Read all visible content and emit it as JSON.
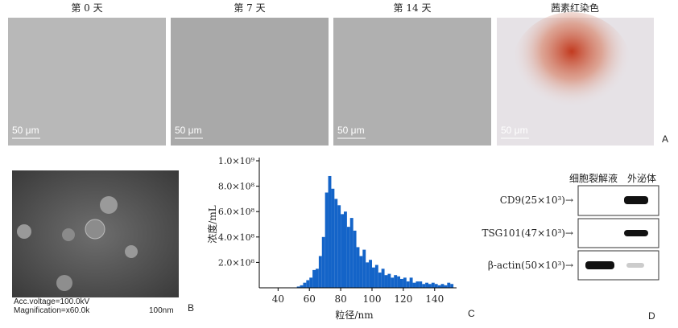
{
  "panel_a": {
    "titles": [
      "第 0 天",
      "第 7 天",
      "第 14 天",
      "茜素红染色"
    ],
    "scale": "50 μm",
    "letter": "A"
  },
  "panel_b": {
    "voltage": "Acc.voltage=100.0kV",
    "magnification": "Magnification=x60.0k",
    "scale": "100nm",
    "letter": "B"
  },
  "chart_data": {
    "type": "histogram",
    "xlabel": "粒径/nm",
    "ylabel": "浓度/mL",
    "color": "#1464c8",
    "bins": [
      52,
      54,
      56,
      58,
      60,
      62,
      64,
      66,
      68,
      70,
      72,
      74,
      76,
      78,
      80,
      82,
      84,
      86,
      88,
      90,
      92,
      94,
      96,
      98,
      100,
      102,
      104,
      106,
      108,
      110,
      112,
      114,
      116,
      118,
      120,
      122,
      124,
      126,
      128,
      130,
      132,
      134,
      136,
      138,
      140,
      142,
      144,
      146,
      148,
      150,
      152
    ],
    "values": [
      10000000.0,
      20000000.0,
      40000000.0,
      60000000.0,
      80000000.0,
      140000000.0,
      150000000.0,
      250000000.0,
      400000000.0,
      750000000.0,
      880000000.0,
      780000000.0,
      700000000.0,
      650000000.0,
      580000000.0,
      600000000.0,
      480000000.0,
      550000000.0,
      450000000.0,
      320000000.0,
      250000000.0,
      300000000.0,
      200000000.0,
      220000000.0,
      160000000.0,
      180000000.0,
      120000000.0,
      150000000.0,
      100000000.0,
      110000000.0,
      80000000.0,
      100000000.0,
      90000000.0,
      70000000.0,
      80000000.0,
      50000000.0,
      80000000.0,
      40000000.0,
      50000000.0,
      50000000.0,
      30000000.0,
      40000000.0,
      30000000.0,
      40000000.0,
      30000000.0,
      20000000.0,
      30000000.0,
      20000000.0,
      40000000.0,
      30000000.0
    ],
    "xlim": [
      28,
      154
    ],
    "ylim": [
      0,
      1000000000
    ],
    "xticks": [
      40,
      60,
      80,
      100,
      120,
      140
    ],
    "yticks": [
      {
        "value": 200000000,
        "label": "2.0×10⁸"
      },
      {
        "value": 400000000,
        "label": "4.0×10⁸"
      },
      {
        "value": 600000000,
        "label": "6.0×10⁸"
      },
      {
        "value": 800000000,
        "label": "8.0×10⁸"
      },
      {
        "value": 1000000000,
        "label": "1.0×10⁹"
      }
    ],
    "letter": "C"
  },
  "panel_d": {
    "columns": [
      "细胞裂解液",
      "外泌体"
    ],
    "rows": [
      "CD9(25×10³)→",
      "TSG101(47×10³)→",
      "β-actin(50×10³)→"
    ],
    "letter": "D"
  }
}
